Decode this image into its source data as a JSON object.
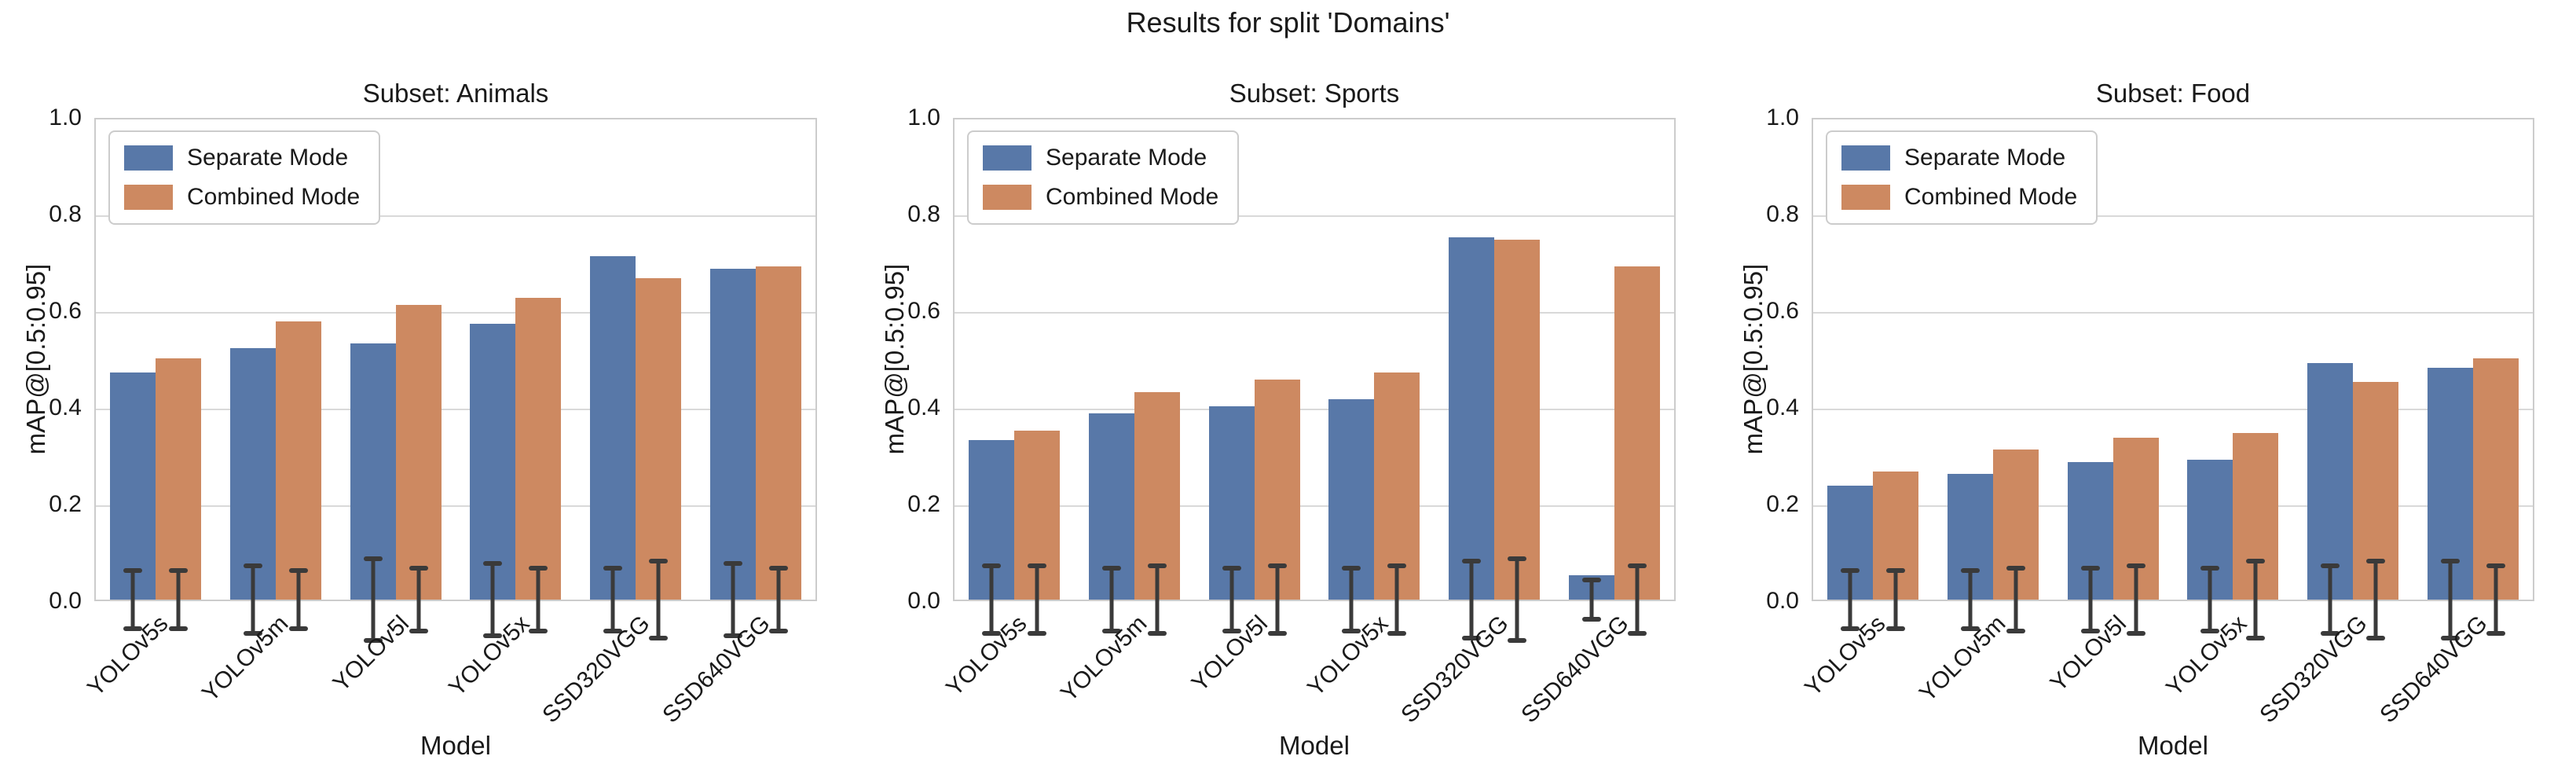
{
  "figure": {
    "title": "Results for split 'Domains'"
  },
  "axes": {
    "ylabel": "mAP@[0.5:0.95]",
    "xlabel": "Model",
    "yticks": [
      "1.0",
      "0.8",
      "0.6",
      "0.4",
      "0.2",
      "0.0"
    ],
    "ylim": [
      0,
      1
    ],
    "grid": "horizontal"
  },
  "legend": {
    "position": "upper left",
    "entries": [
      {
        "label": "Separate Mode",
        "color": "#5878a8"
      },
      {
        "label": "Combined Mode",
        "color": "#cd8961"
      }
    ]
  },
  "colors": {
    "separate_mode": "#5878a8",
    "combined_mode": "#cd8961",
    "errorbar": "#3a3a3a",
    "gridline": "#d9d9d9",
    "axes_border": "#cccccc",
    "text": "#1a1a1a",
    "background": "#ffffff"
  },
  "chart_data": [
    {
      "type": "bar",
      "title": "Subset: Animals",
      "xlabel": "Model",
      "ylabel": "mAP@[0.5:0.95]",
      "ylim": [
        0,
        1
      ],
      "categories": [
        "YOLOv5s",
        "YOLOv5m",
        "YOLOv5l",
        "YOLOv5x",
        "SSD320VGG",
        "SSD640VGG"
      ],
      "series": [
        {
          "name": "Separate Mode",
          "values": [
            0.47,
            0.52,
            0.53,
            0.57,
            0.71,
            0.685
          ],
          "errors": [
            0.06,
            0.07,
            0.085,
            0.075,
            0.065,
            0.075
          ]
        },
        {
          "name": "Combined Mode",
          "values": [
            0.5,
            0.575,
            0.61,
            0.625,
            0.665,
            0.69
          ],
          "errors": [
            0.06,
            0.06,
            0.065,
            0.065,
            0.08,
            0.065
          ]
        }
      ]
    },
    {
      "type": "bar",
      "title": "Subset: Sports",
      "xlabel": "Model",
      "ylabel": "mAP@[0.5:0.95]",
      "ylim": [
        0,
        1
      ],
      "categories": [
        "YOLOv5s",
        "YOLOv5m",
        "YOLOv5l",
        "YOLOv5x",
        "SSD320VGG",
        "SSD640VGG"
      ],
      "series": [
        {
          "name": "Separate Mode",
          "values": [
            0.33,
            0.385,
            0.4,
            0.415,
            0.75,
            0.05
          ],
          "errors": [
            0.07,
            0.065,
            0.065,
            0.065,
            0.08,
            0.04
          ]
        },
        {
          "name": "Combined Mode",
          "values": [
            0.35,
            0.43,
            0.455,
            0.47,
            0.745,
            0.69
          ],
          "errors": [
            0.07,
            0.07,
            0.07,
            0.07,
            0.085,
            0.07
          ]
        }
      ]
    },
    {
      "type": "bar",
      "title": "Subset: Food",
      "xlabel": "Model",
      "ylabel": "mAP@[0.5:0.95]",
      "ylim": [
        0,
        1
      ],
      "categories": [
        "YOLOv5s",
        "YOLOv5m",
        "YOLOv5l",
        "YOLOv5x",
        "SSD320VGG",
        "SSD640VGG"
      ],
      "series": [
        {
          "name": "Separate Mode",
          "values": [
            0.235,
            0.26,
            0.285,
            0.29,
            0.49,
            0.48
          ],
          "errors": [
            0.06,
            0.06,
            0.065,
            0.065,
            0.07,
            0.08
          ]
        },
        {
          "name": "Combined Mode",
          "values": [
            0.265,
            0.31,
            0.335,
            0.345,
            0.45,
            0.5
          ],
          "errors": [
            0.06,
            0.065,
            0.07,
            0.08,
            0.08,
            0.07
          ]
        }
      ]
    }
  ]
}
